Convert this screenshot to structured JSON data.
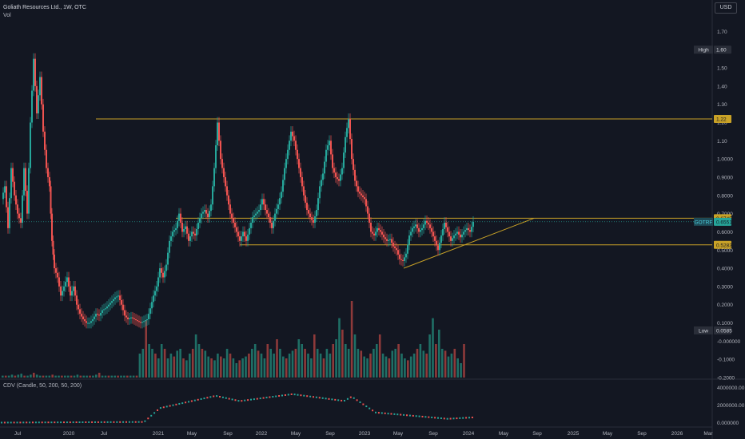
{
  "header": {
    "title": "Goliath Resources Ltd., 1W, OTC",
    "volume_label": "Vol",
    "cdv_label": "CDV (Candle, 50, 200, 50, 200)",
    "currency": "USD"
  },
  "colors": {
    "background": "#131722",
    "up": "#26a69a",
    "down": "#ef5350",
    "line": "#c9a227",
    "grid": "#1e222d",
    "text": "#b2b5be"
  },
  "chart_data": [
    {
      "type": "candlestick",
      "title": "Goliath Resources Ltd., 1W, OTC",
      "symbol": "GOTRF",
      "x_ticks": [
        "Jul",
        "2020",
        "Jul",
        "2021",
        "May",
        "Sep",
        "2022",
        "May",
        "Sep",
        "2023",
        "May",
        "Sep",
        "2024",
        "May",
        "Sep",
        "2025",
        "May",
        "Sep",
        "2026",
        "Mar"
      ],
      "y_ticks": [
        "1.70",
        "1.60",
        "1.50",
        "1.40",
        "1.30",
        "1.20",
        "1.10",
        "1.0000",
        "0.9000",
        "0.8000",
        "0.7000",
        "0.6000",
        "0.5000",
        "0.4000",
        "0.3000",
        "0.2000",
        "0.1000",
        "-0.000000",
        "-0.1000",
        "-0.2000"
      ],
      "price_labels": [
        {
          "text": "High",
          "value": "1.60"
        },
        {
          "text": "",
          "value": "1.22"
        },
        {
          "text": "",
          "value": "0.6745"
        },
        {
          "text": "GOTRF",
          "value": "0.6551"
        },
        {
          "text": "",
          "value": "0.5283"
        },
        {
          "text": "Low",
          "value": "0.0585"
        }
      ],
      "ohlc_path": [
        {
          "x": 0.0,
          "y": 0.78
        },
        {
          "x": 4,
          "y": 0.85
        },
        {
          "x": 8,
          "y": 0.62
        },
        {
          "x": 12,
          "y": 0.95
        },
        {
          "x": 16,
          "y": 0.8
        },
        {
          "x": 20,
          "y": 0.7
        },
        {
          "x": 24,
          "y": 0.65
        },
        {
          "x": 28,
          "y": 0.95
        },
        {
          "x": 32,
          "y": 0.7
        },
        {
          "x": 36,
          "y": 1.2
        },
        {
          "x": 40,
          "y": 1.55
        },
        {
          "x": 44,
          "y": 1.25
        },
        {
          "x": 48,
          "y": 1.45
        },
        {
          "x": 52,
          "y": 1.15
        },
        {
          "x": 56,
          "y": 0.95
        },
        {
          "x": 60,
          "y": 0.85
        },
        {
          "x": 63,
          "y": 0.55
        },
        {
          "x": 66,
          "y": 0.4
        },
        {
          "x": 70,
          "y": 0.35
        },
        {
          "x": 74,
          "y": 0.25
        },
        {
          "x": 78,
          "y": 0.3
        },
        {
          "x": 82,
          "y": 0.35
        },
        {
          "x": 86,
          "y": 0.25
        },
        {
          "x": 90,
          "y": 0.3
        },
        {
          "x": 94,
          "y": 0.2
        },
        {
          "x": 98,
          "y": 0.15
        },
        {
          "x": 102,
          "y": 0.12
        },
        {
          "x": 106,
          "y": 0.1
        },
        {
          "x": 110,
          "y": 0.1
        },
        {
          "x": 114,
          "y": 0.12
        },
        {
          "x": 118,
          "y": 0.15
        },
        {
          "x": 122,
          "y": 0.14
        },
        {
          "x": 126,
          "y": 0.17
        },
        {
          "x": 130,
          "y": 0.18
        },
        {
          "x": 134,
          "y": 0.2
        },
        {
          "x": 138,
          "y": 0.22
        },
        {
          "x": 142,
          "y": 0.24
        },
        {
          "x": 146,
          "y": 0.25
        },
        {
          "x": 150,
          "y": 0.2
        },
        {
          "x": 154,
          "y": 0.14
        },
        {
          "x": 158,
          "y": 0.12
        },
        {
          "x": 162,
          "y": 0.13
        },
        {
          "x": 166,
          "y": 0.12
        },
        {
          "x": 170,
          "y": 0.11
        },
        {
          "x": 174,
          "y": 0.1
        },
        {
          "x": 178,
          "y": 0.11
        },
        {
          "x": 182,
          "y": 0.12
        },
        {
          "x": 186,
          "y": 0.18
        },
        {
          "x": 190,
          "y": 0.25
        },
        {
          "x": 194,
          "y": 0.3
        },
        {
          "x": 198,
          "y": 0.4
        },
        {
          "x": 202,
          "y": 0.35
        },
        {
          "x": 206,
          "y": 0.42
        },
        {
          "x": 210,
          "y": 0.55
        },
        {
          "x": 214,
          "y": 0.6
        },
        {
          "x": 218,
          "y": 0.62
        },
        {
          "x": 222,
          "y": 0.7
        },
        {
          "x": 226,
          "y": 0.6
        },
        {
          "x": 230,
          "y": 0.63
        },
        {
          "x": 234,
          "y": 0.55
        },
        {
          "x": 238,
          "y": 0.6
        },
        {
          "x": 242,
          "y": 0.58
        },
        {
          "x": 246,
          "y": 0.65
        },
        {
          "x": 250,
          "y": 0.7
        },
        {
          "x": 254,
          "y": 0.72
        },
        {
          "x": 258,
          "y": 0.68
        },
        {
          "x": 262,
          "y": 0.75
        },
        {
          "x": 266,
          "y": 0.95
        },
        {
          "x": 270,
          "y": 1.2
        },
        {
          "x": 274,
          "y": 1.0
        },
        {
          "x": 278,
          "y": 0.9
        },
        {
          "x": 282,
          "y": 0.8
        },
        {
          "x": 286,
          "y": 0.7
        },
        {
          "x": 290,
          "y": 0.65
        },
        {
          "x": 294,
          "y": 0.6
        },
        {
          "x": 298,
          "y": 0.55
        },
        {
          "x": 302,
          "y": 0.6
        },
        {
          "x": 306,
          "y": 0.55
        },
        {
          "x": 310,
          "y": 0.62
        },
        {
          "x": 314,
          "y": 0.68
        },
        {
          "x": 318,
          "y": 0.7
        },
        {
          "x": 322,
          "y": 0.72
        },
        {
          "x": 326,
          "y": 0.78
        },
        {
          "x": 330,
          "y": 0.72
        },
        {
          "x": 334,
          "y": 0.68
        },
        {
          "x": 338,
          "y": 0.62
        },
        {
          "x": 342,
          "y": 0.7
        },
        {
          "x": 346,
          "y": 0.75
        },
        {
          "x": 350,
          "y": 0.82
        },
        {
          "x": 354,
          "y": 0.95
        },
        {
          "x": 358,
          "y": 1.05
        },
        {
          "x": 362,
          "y": 1.15
        },
        {
          "x": 366,
          "y": 1.1
        },
        {
          "x": 370,
          "y": 1.0
        },
        {
          "x": 374,
          "y": 0.9
        },
        {
          "x": 378,
          "y": 0.8
        },
        {
          "x": 382,
          "y": 0.72
        },
        {
          "x": 386,
          "y": 0.68
        },
        {
          "x": 390,
          "y": 0.65
        },
        {
          "x": 394,
          "y": 0.72
        },
        {
          "x": 398,
          "y": 0.85
        },
        {
          "x": 402,
          "y": 0.92
        },
        {
          "x": 406,
          "y": 1.05
        },
        {
          "x": 410,
          "y": 1.1
        },
        {
          "x": 414,
          "y": 0.95
        },
        {
          "x": 418,
          "y": 0.9
        },
        {
          "x": 422,
          "y": 0.88
        },
        {
          "x": 426,
          "y": 0.95
        },
        {
          "x": 430,
          "y": 1.12
        },
        {
          "x": 434,
          "y": 1.22
        },
        {
          "x": 438,
          "y": 1.0
        },
        {
          "x": 442,
          "y": 0.88
        },
        {
          "x": 446,
          "y": 0.82
        },
        {
          "x": 450,
          "y": 0.8
        },
        {
          "x": 454,
          "y": 0.78
        },
        {
          "x": 458,
          "y": 0.7
        },
        {
          "x": 462,
          "y": 0.6
        },
        {
          "x": 466,
          "y": 0.58
        },
        {
          "x": 470,
          "y": 0.62
        },
        {
          "x": 474,
          "y": 0.6
        },
        {
          "x": 478,
          "y": 0.57
        },
        {
          "x": 482,
          "y": 0.55
        },
        {
          "x": 486,
          "y": 0.56
        },
        {
          "x": 490,
          "y": 0.52
        },
        {
          "x": 494,
          "y": 0.5
        },
        {
          "x": 498,
          "y": 0.45
        },
        {
          "x": 502,
          "y": 0.44
        },
        {
          "x": 506,
          "y": 0.48
        },
        {
          "x": 510,
          "y": 0.58
        },
        {
          "x": 514,
          "y": 0.62
        },
        {
          "x": 518,
          "y": 0.64
        },
        {
          "x": 522,
          "y": 0.6
        },
        {
          "x": 526,
          "y": 0.62
        },
        {
          "x": 530,
          "y": 0.66
        },
        {
          "x": 534,
          "y": 0.64
        },
        {
          "x": 538,
          "y": 0.6
        },
        {
          "x": 542,
          "y": 0.55
        },
        {
          "x": 546,
          "y": 0.5
        },
        {
          "x": 550,
          "y": 0.58
        },
        {
          "x": 554,
          "y": 0.65
        },
        {
          "x": 558,
          "y": 0.6
        },
        {
          "x": 562,
          "y": 0.55
        },
        {
          "x": 566,
          "y": 0.58
        },
        {
          "x": 570,
          "y": 0.6
        },
        {
          "x": 574,
          "y": 0.57
        },
        {
          "x": 578,
          "y": 0.6
        },
        {
          "x": 582,
          "y": 0.62
        },
        {
          "x": 586,
          "y": 0.6
        },
        {
          "x": 590,
          "y": 0.655
        }
      ],
      "volume": [
        0.02,
        0.02,
        0.02,
        0.03,
        0.02,
        0.03,
        0.04,
        0.02,
        0.02,
        0.03,
        0.05,
        0.03,
        0.02,
        0.02,
        0.02,
        0.02,
        0.03,
        0.02,
        0.02,
        0.02,
        0.02,
        0.02,
        0.02,
        0.02,
        0.03,
        0.02,
        0.02,
        0.02,
        0.02,
        0.02,
        0.03,
        0.05,
        0.02,
        0.02,
        0.02,
        0.02,
        0.02,
        0.02,
        0.02,
        0.02,
        0.02,
        0.02,
        0.02,
        0.02,
        0.25,
        0.3,
        0.6,
        0.35,
        0.3,
        0.25,
        0.2,
        0.35,
        0.3,
        0.2,
        0.25,
        0.22,
        0.28,
        0.3,
        0.2,
        0.18,
        0.25,
        0.3,
        0.45,
        0.35,
        0.3,
        0.28,
        0.22,
        0.2,
        0.18,
        0.25,
        0.22,
        0.2,
        0.3,
        0.25,
        0.2,
        0.15,
        0.18,
        0.2,
        0.22,
        0.25,
        0.3,
        0.35,
        0.28,
        0.25,
        0.2,
        0.35,
        0.3,
        0.25,
        0.4,
        0.3,
        0.22,
        0.2,
        0.25,
        0.28,
        0.3,
        0.4,
        0.35,
        0.3,
        0.25,
        0.2,
        0.45,
        0.3,
        0.25,
        0.2,
        0.3,
        0.25,
        0.35,
        0.4,
        0.62,
        0.5,
        0.35,
        0.3,
        0.8,
        0.45,
        0.3,
        0.28,
        0.22,
        0.2,
        0.25,
        0.3,
        0.35,
        0.45,
        0.25,
        0.22,
        0.2,
        0.28,
        0.3,
        0.35,
        0.25,
        0.2,
        0.18,
        0.22,
        0.25,
        0.3,
        0.35,
        0.28,
        0.25,
        0.45,
        0.62,
        0.35,
        0.5,
        0.3,
        0.28,
        0.22,
        0.25,
        0.3,
        0.2,
        0.15,
        0.35
      ],
      "cdv_ticks": [
        "4000000.00",
        "2000000.00",
        "0.000000"
      ]
    }
  ]
}
